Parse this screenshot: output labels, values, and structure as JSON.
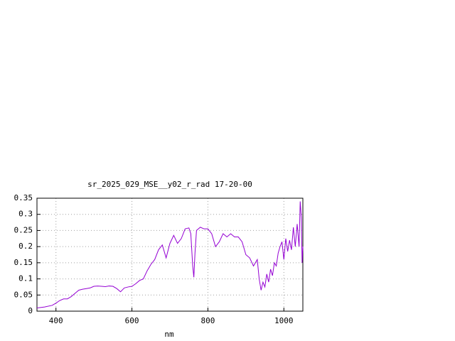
{
  "chart_data": {
    "type": "line",
    "title": "sr_2025_029_MSE__y02_r_rad 17-20-00",
    "x_label": "nm",
    "x": [
      350,
      370,
      390,
      400,
      410,
      420,
      430,
      440,
      450,
      460,
      470,
      480,
      490,
      500,
      510,
      520,
      530,
      540,
      550,
      560,
      570,
      580,
      590,
      600,
      610,
      620,
      630,
      640,
      650,
      660,
      670,
      680,
      690,
      700,
      710,
      720,
      730,
      740,
      750,
      755,
      760,
      763,
      766,
      770,
      780,
      790,
      800,
      810,
      820,
      830,
      840,
      850,
      860,
      870,
      880,
      890,
      900,
      910,
      920,
      930,
      935,
      940,
      945,
      950,
      955,
      960,
      965,
      970,
      975,
      980,
      985,
      990,
      995,
      1000,
      1005,
      1010,
      1015,
      1020,
      1025,
      1030,
      1035,
      1040,
      1043,
      1046,
      1048,
      1050
    ],
    "series": [
      {
        "color": "#9400d3",
        "values": [
          0.01,
          0.013,
          0.018,
          0.025,
          0.033,
          0.038,
          0.038,
          0.045,
          0.055,
          0.065,
          0.068,
          0.07,
          0.072,
          0.077,
          0.078,
          0.077,
          0.076,
          0.078,
          0.077,
          0.07,
          0.06,
          0.072,
          0.075,
          0.077,
          0.085,
          0.095,
          0.1,
          0.125,
          0.145,
          0.16,
          0.19,
          0.205,
          0.165,
          0.21,
          0.235,
          0.21,
          0.225,
          0.255,
          0.258,
          0.24,
          0.14,
          0.105,
          0.18,
          0.25,
          0.26,
          0.255,
          0.255,
          0.24,
          0.2,
          0.215,
          0.24,
          0.23,
          0.24,
          0.23,
          0.23,
          0.215,
          0.175,
          0.165,
          0.14,
          0.16,
          0.1,
          0.065,
          0.09,
          0.075,
          0.115,
          0.09,
          0.13,
          0.11,
          0.15,
          0.14,
          0.18,
          0.2,
          0.215,
          0.16,
          0.225,
          0.185,
          0.22,
          0.19,
          0.26,
          0.2,
          0.27,
          0.2,
          0.34,
          0.29,
          0.15,
          0.2
        ]
      }
    ],
    "xlim": [
      350,
      1050
    ],
    "xticks": [
      400,
      600,
      800,
      1000
    ],
    "ylim": [
      0,
      0.35
    ],
    "yticks": [
      0,
      0.05,
      0.1,
      0.15,
      0.2,
      0.25,
      0.3,
      0.35
    ],
    "grid": true
  }
}
